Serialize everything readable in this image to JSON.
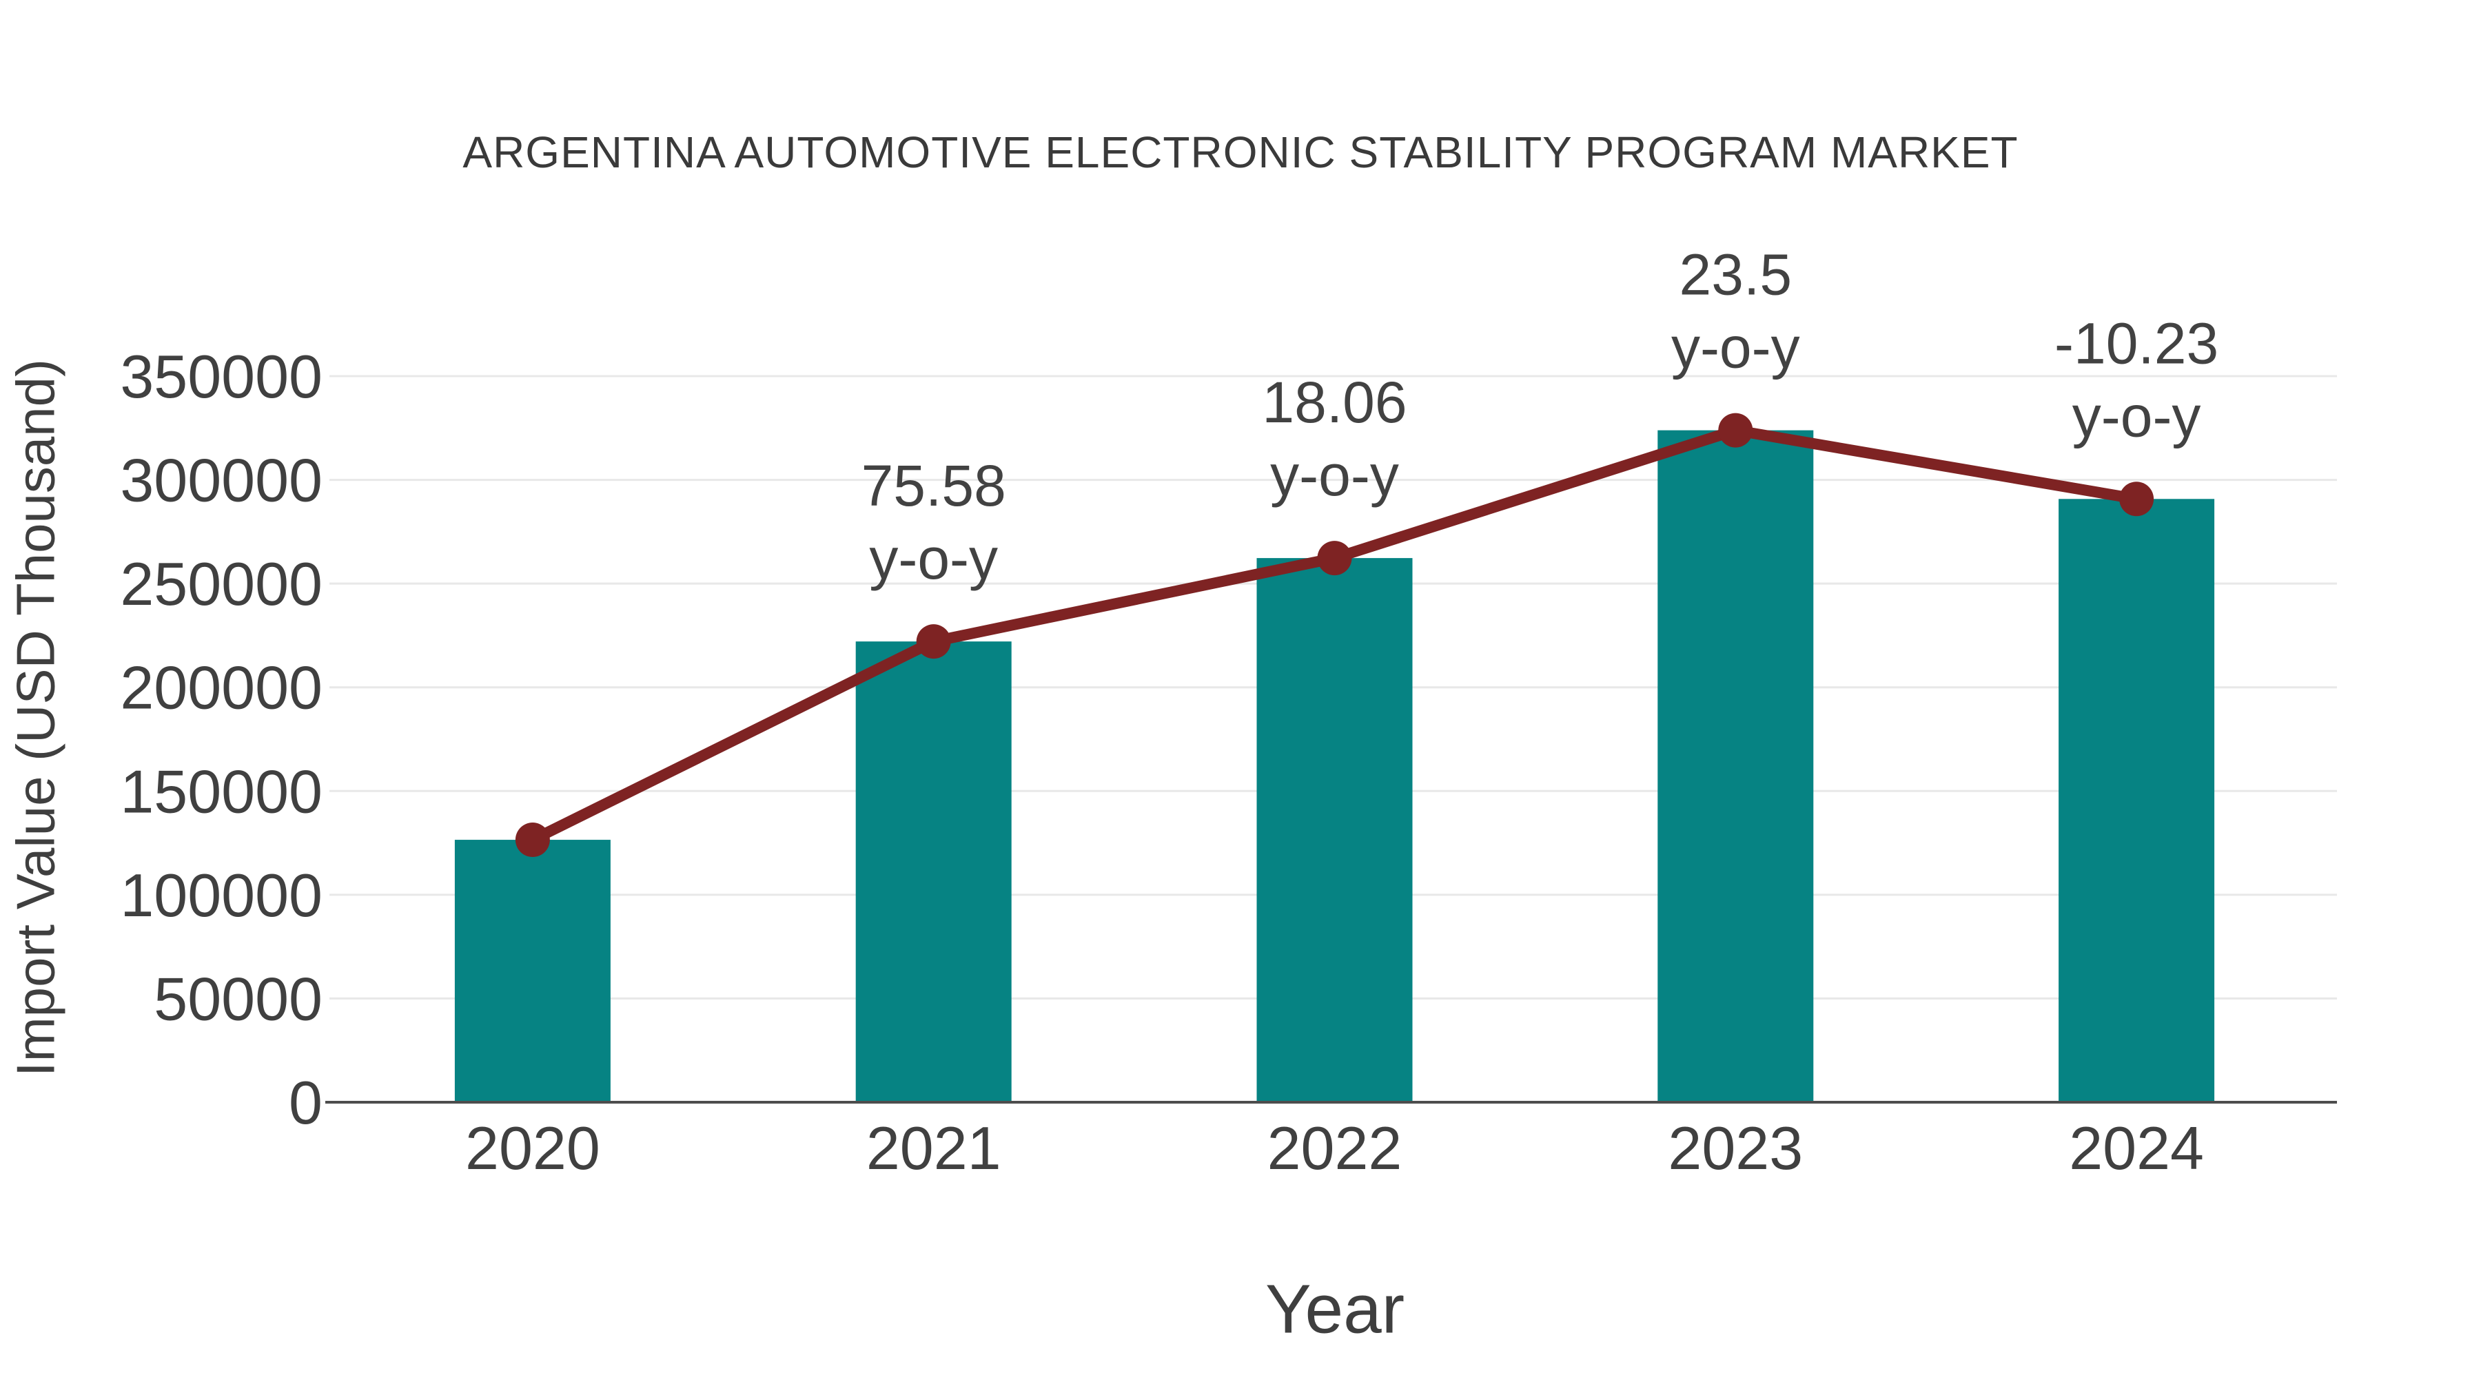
{
  "chart_data": {
    "type": "bar",
    "title": "ARGENTINA AUTOMOTIVE ELECTRONIC STABILITY PROGRAM MARKET",
    "xlabel": "Year",
    "ylabel": "Import Value (USD Thousand)",
    "categories": [
      "2020",
      "2021",
      "2022",
      "2023",
      "2024"
    ],
    "series": [
      {
        "name": "Import Value",
        "type": "bar",
        "color": "#068383",
        "values": [
          126500,
          222100,
          262300,
          323900,
          290800
        ]
      },
      {
        "name": "y-o-y trend line",
        "type": "line",
        "color": "#7e2323",
        "values": [
          126500,
          222100,
          262300,
          323900,
          290800
        ],
        "point_labels": [
          null,
          "75.58",
          "18.06",
          "23.5",
          "-10.23"
        ],
        "label_suffix": "y-o-y",
        "yoy_percent": [
          null,
          75.58,
          18.06,
          23.5,
          -10.23
        ]
      }
    ],
    "ylim": [
      0,
      350000
    ],
    "ytick_step": 50000,
    "ytick_labels": [
      "0",
      "50000",
      "100000",
      "150000",
      "200000",
      "250000",
      "300000",
      "350000"
    ],
    "grid": true,
    "legend": false,
    "colors": {
      "bar": "#068383",
      "line": "#7e2323",
      "grid": "#e8e8e8",
      "axis": "#4d4d4d",
      "text": "#404040"
    }
  }
}
